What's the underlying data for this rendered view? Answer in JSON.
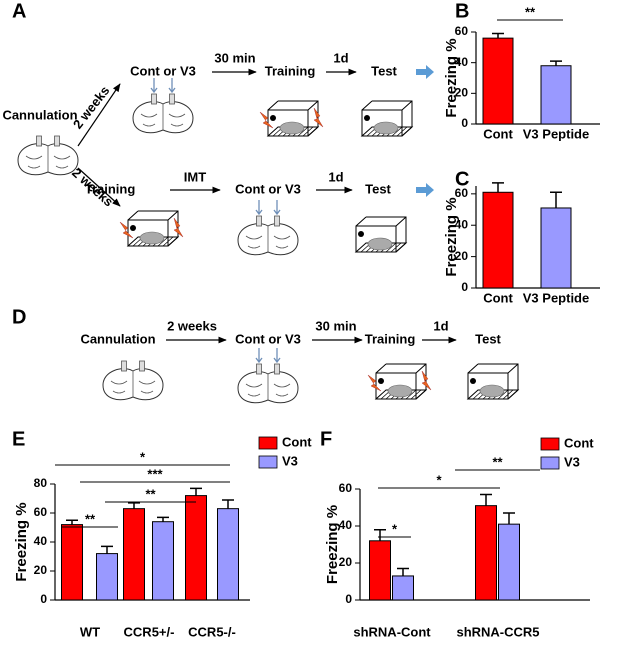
{
  "panel_labels": [
    "A",
    "B",
    "C",
    "D",
    "E",
    "F"
  ],
  "diagram_a": {
    "start": "Cannulation",
    "route_1": {
      "delay": "2 weeks",
      "steps": [
        "Cont or V3",
        "Training",
        "Test"
      ],
      "intervals": [
        "30 min",
        "1d"
      ]
    },
    "route_2": {
      "delay": "2 weeks",
      "steps": [
        "Training",
        "Cont or V3",
        "Test"
      ],
      "intervals": [
        "IMT",
        "1d"
      ]
    }
  },
  "diagram_d": {
    "steps": [
      "Cannulation",
      "Cont or V3",
      "Training",
      "Test"
    ],
    "intervals": [
      "2 weeks",
      "30 min",
      "1d"
    ]
  },
  "chart_data": [
    {
      "type": "bar",
      "y_label": "Freezing %",
      "categories": [
        "Cont",
        "V3 Peptide"
      ],
      "values": [
        56,
        38
      ],
      "errors": [
        3,
        3
      ],
      "colors": [
        "#ff0000",
        "#9999ff"
      ],
      "ylim": [
        0,
        60
      ],
      "yticks": [
        0,
        20,
        40,
        60
      ],
      "significance": [
        "**"
      ]
    },
    {
      "type": "bar",
      "y_label": "Freezing %",
      "categories": [
        "Cont",
        "V3 Peptide"
      ],
      "values": [
        61,
        51
      ],
      "errors": [
        6,
        10
      ],
      "colors": [
        "#ff0000",
        "#9999ff"
      ],
      "ylim": [
        0,
        65
      ],
      "yticks": [
        0,
        20,
        40,
        60
      ],
      "significance": []
    },
    {
      "type": "grouped_bar",
      "y_label": "Freezing %",
      "categories": [
        "WT",
        "CCR5+/-",
        "CCR5-/-"
      ],
      "series": [
        {
          "name": "Cont",
          "color": "#ff0000",
          "values": [
            52,
            63,
            72
          ],
          "errors": [
            3,
            4,
            5
          ]
        },
        {
          "name": "V3",
          "color": "#9999ff",
          "values": [
            32,
            54,
            63
          ],
          "errors": [
            5,
            3,
            6
          ]
        }
      ],
      "ylim": [
        0,
        80
      ],
      "yticks": [
        0,
        20,
        40,
        60,
        80
      ],
      "significance": [
        "*",
        "***",
        "**",
        "**"
      ]
    },
    {
      "type": "grouped_bar",
      "y_label": "Freezing %",
      "categories": [
        "shRNA-Cont",
        "shRNA-CCR5"
      ],
      "series": [
        {
          "name": "Cont",
          "color": "#ff0000",
          "values": [
            32,
            51
          ],
          "errors": [
            6,
            6
          ]
        },
        {
          "name": "V3",
          "color": "#9999ff",
          "values": [
            13,
            41
          ],
          "errors": [
            4,
            6
          ]
        }
      ],
      "ylim": [
        0,
        60
      ],
      "yticks": [
        0,
        20,
        40,
        60
      ],
      "significance": [
        "**",
        "*",
        "*"
      ]
    }
  ]
}
